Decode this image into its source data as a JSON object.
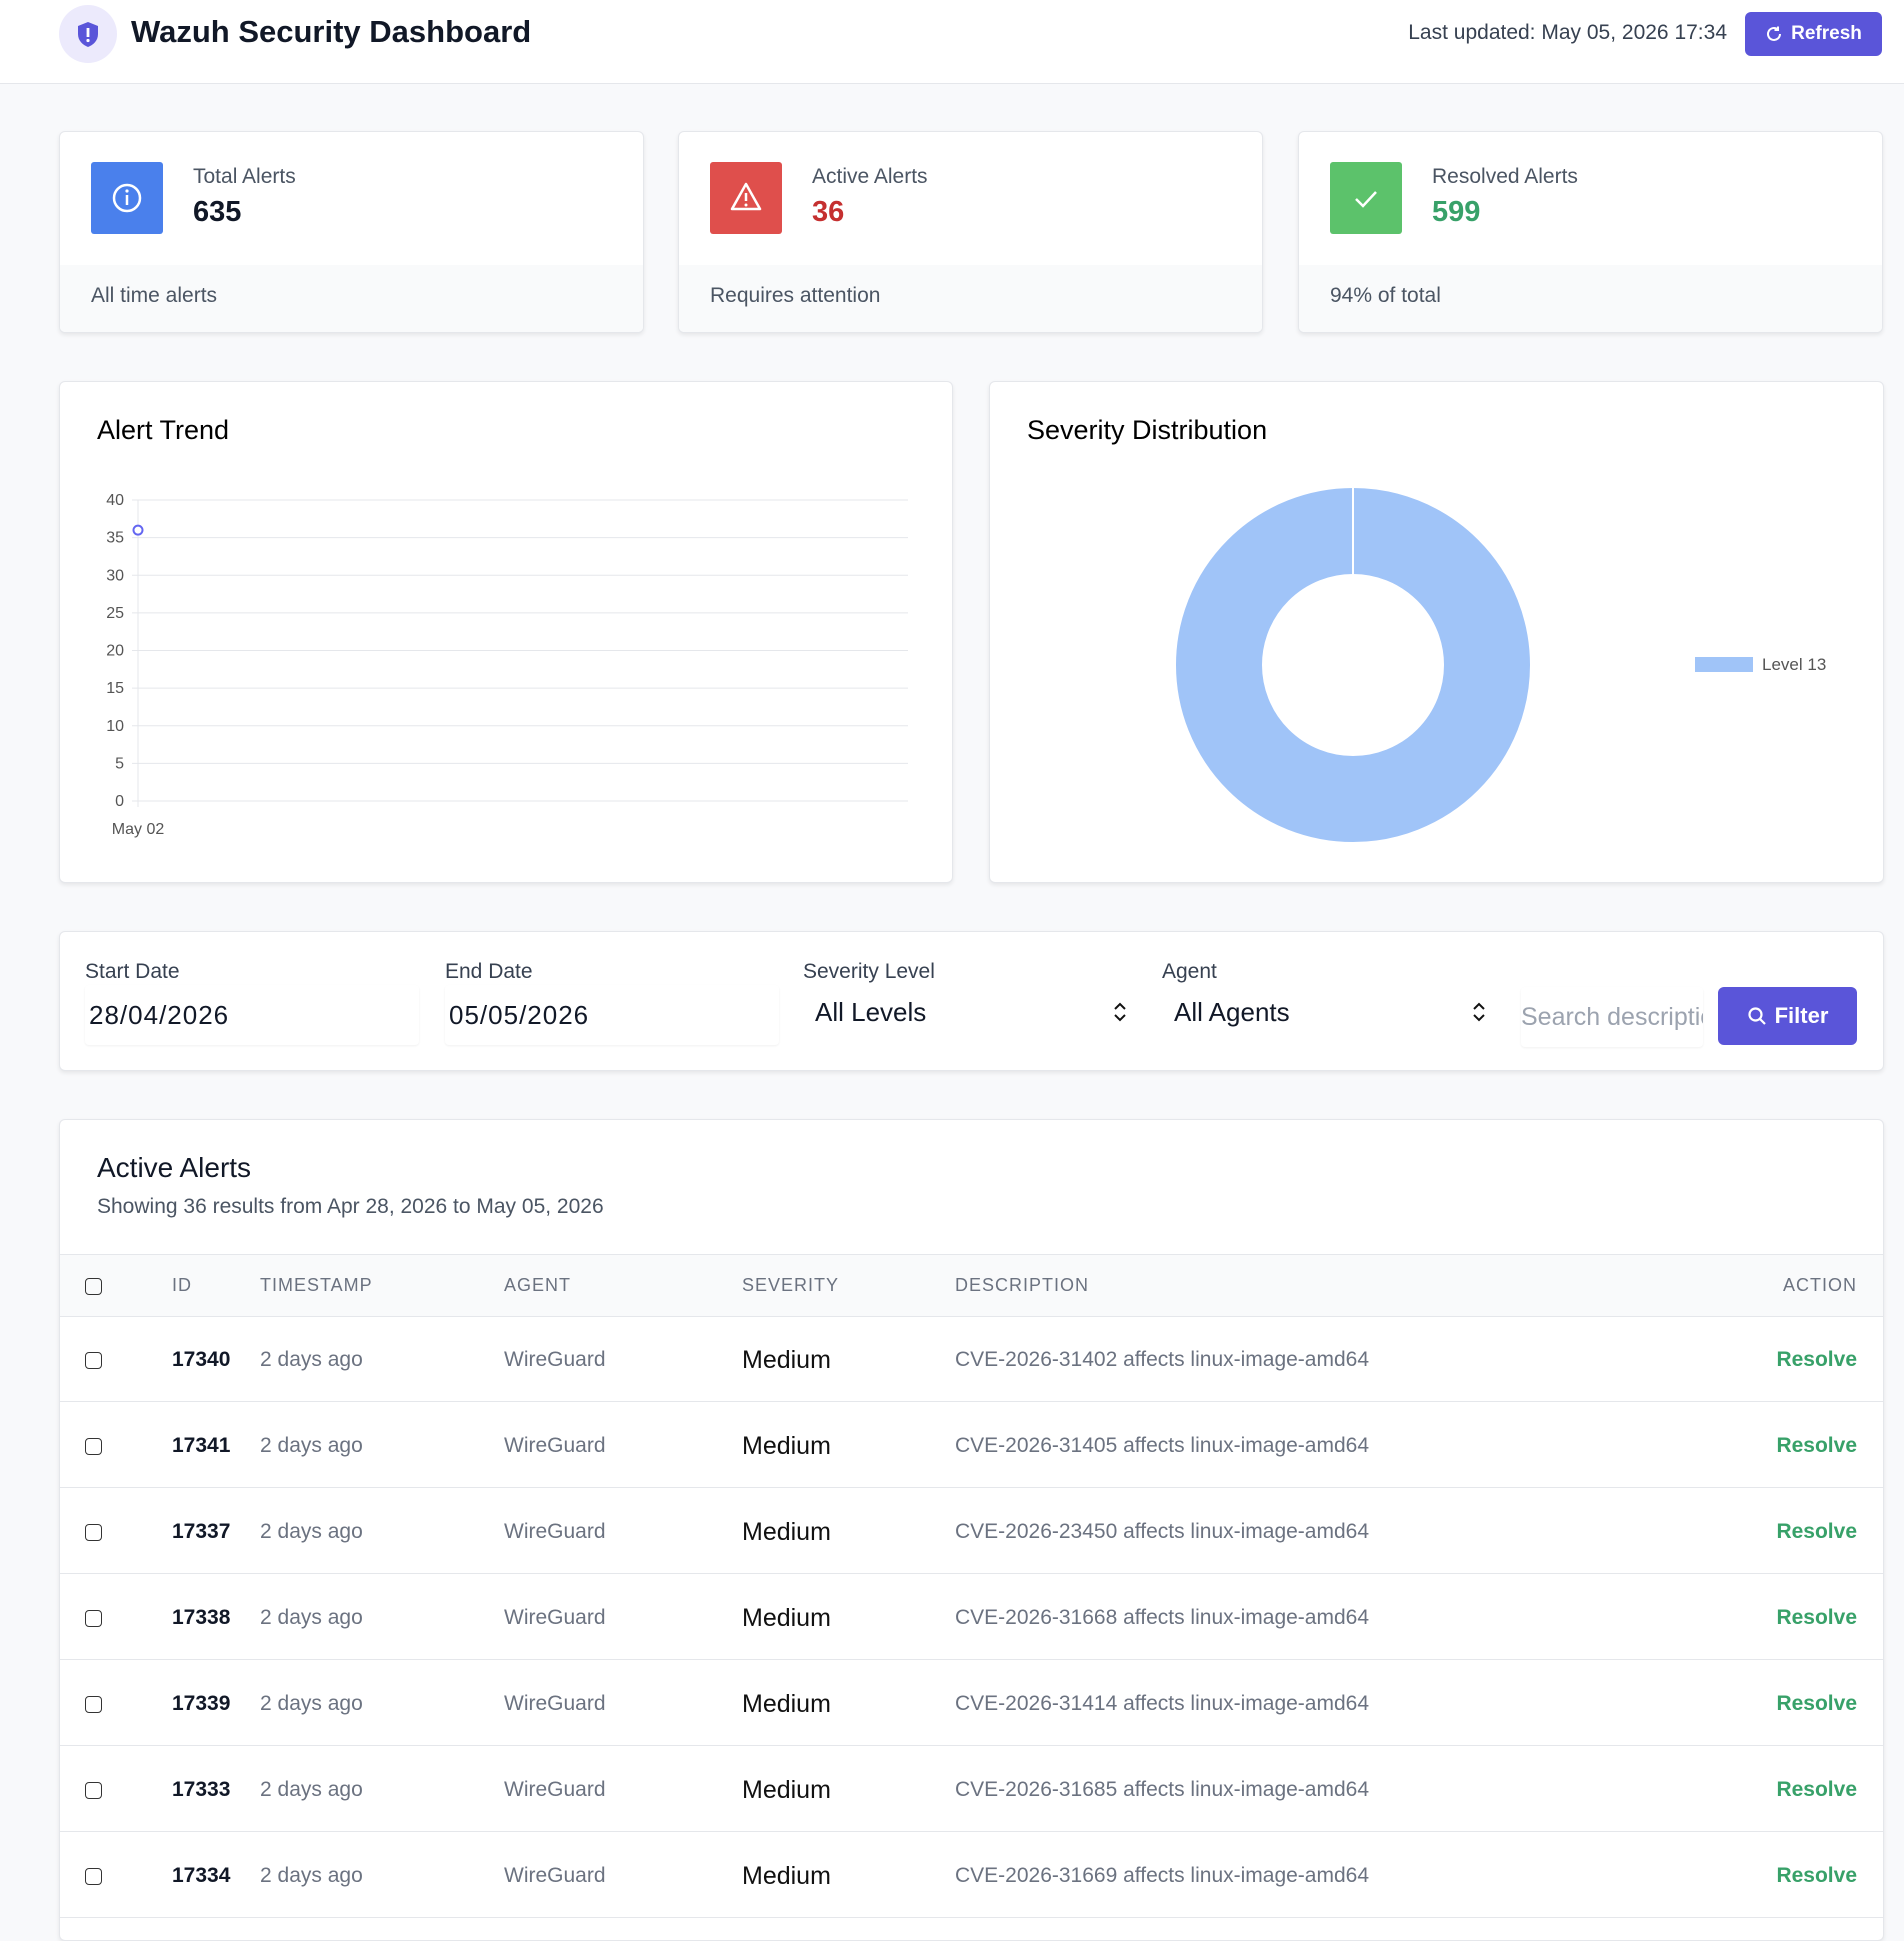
{
  "header": {
    "title": "Wazuh Security Dashboard",
    "last_updated": "Last updated: May 05, 2026 17:34",
    "refresh": "Refresh"
  },
  "cards": [
    {
      "label": "Total Alerts",
      "value": 635,
      "footer": "All time alerts"
    },
    {
      "label": "Active Alerts",
      "value": 36,
      "footer": "Requires attention"
    },
    {
      "label": "Resolved Alerts",
      "value": 599,
      "footer": "94% of total"
    }
  ],
  "chart_data": [
    {
      "type": "line",
      "title": "Alert Trend",
      "categories": [
        "May 02"
      ],
      "values": [
        36
      ],
      "color": "#6366f1",
      "ylim": [
        0,
        40
      ],
      "yticks": [
        0,
        5,
        10,
        15,
        20,
        25,
        30,
        35,
        40
      ],
      "grid": true
    },
    {
      "type": "pie",
      "title": "Severity Distribution",
      "categories": [
        "Level 13"
      ],
      "values": [
        100
      ],
      "colors": [
        "#a0c4f8"
      ],
      "donut": true,
      "legend": "right"
    }
  ],
  "filters": {
    "start_date": {
      "label": "Start Date",
      "value": "28/04/2026"
    },
    "end_date": {
      "label": "End Date",
      "value": "05/05/2026"
    },
    "severity": {
      "label": "Severity Level",
      "value": "All Levels"
    },
    "agent": {
      "label": "Agent",
      "value": "All Agents"
    },
    "search": "Search description",
    "button": "Filter"
  },
  "table": {
    "title": "Active Alerts",
    "subtitle": "Showing 36 results from Apr 28, 2026 to May 05, 2026",
    "columns": [
      "ID",
      "TIMESTAMP",
      "AGENT",
      "SEVERITY",
      "DESCRIPTION",
      "ACTION"
    ],
    "rows": [
      [
        17340,
        "2 days ago",
        "WireGuard",
        "Medium",
        "CVE-2026-31402 affects linux-image-amd64",
        "Resolve"
      ],
      [
        17341,
        "2 days ago",
        "WireGuard",
        "Medium",
        "CVE-2026-31405 affects linux-image-amd64",
        "Resolve"
      ],
      [
        17337,
        "2 days ago",
        "WireGuard",
        "Medium",
        "CVE-2026-23450 affects linux-image-amd64",
        "Resolve"
      ],
      [
        17338,
        "2 days ago",
        "WireGuard",
        "Medium",
        "CVE-2026-31668 affects linux-image-amd64",
        "Resolve"
      ],
      [
        17339,
        "2 days ago",
        "WireGuard",
        "Medium",
        "CVE-2026-31414 affects linux-image-amd64",
        "Resolve"
      ],
      [
        17333,
        "2 days ago",
        "WireGuard",
        "Medium",
        "CVE-2026-31685 affects linux-image-amd64",
        "Resolve"
      ],
      [
        17334,
        "2 days ago",
        "WireGuard",
        "Medium",
        "CVE-2026-31669 affects linux-image-amd64",
        "Resolve"
      ]
    ]
  }
}
